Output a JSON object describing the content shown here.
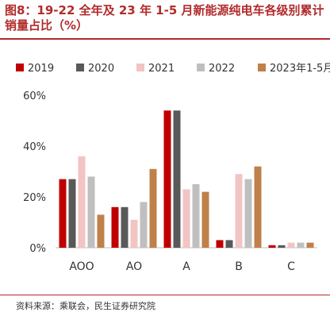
{
  "header": {
    "title": "图8：19-22 全年及 23 年 1-5 月新能源纯电车各级别累计销量占比（%）"
  },
  "footer": {
    "source": "资料来源：乘联会，民生证券研究院"
  },
  "colors": {
    "title": "#b22b2b",
    "rule": "#b22b2b"
  },
  "chart_data": {
    "type": "bar",
    "title": "",
    "xlabel": "",
    "ylabel": "",
    "categories": [
      "AOO",
      "AO",
      "A",
      "B",
      "C"
    ],
    "ylim": [
      0,
      60
    ],
    "yticks": [
      0,
      20,
      40,
      60
    ],
    "ytick_labels": [
      "0%",
      "20%",
      "40%",
      "60%"
    ],
    "legend_position": "top",
    "grid": false,
    "series": [
      {
        "name": "2019",
        "color": "#c00000",
        "values": [
          27,
          16,
          54,
          3,
          1
        ]
      },
      {
        "name": "2020",
        "color": "#595959",
        "values": [
          27,
          16,
          54,
          3,
          1
        ]
      },
      {
        "name": "2021",
        "color": "#f2c4c4",
        "values": [
          36,
          11,
          23,
          29,
          2
        ]
      },
      {
        "name": "2022",
        "color": "#bfbfbf",
        "values": [
          28,
          18,
          25,
          27,
          2
        ]
      },
      {
        "name": "2023年1-5月",
        "color": "#c0804a",
        "values": [
          13,
          31,
          22,
          32,
          2
        ]
      }
    ]
  }
}
